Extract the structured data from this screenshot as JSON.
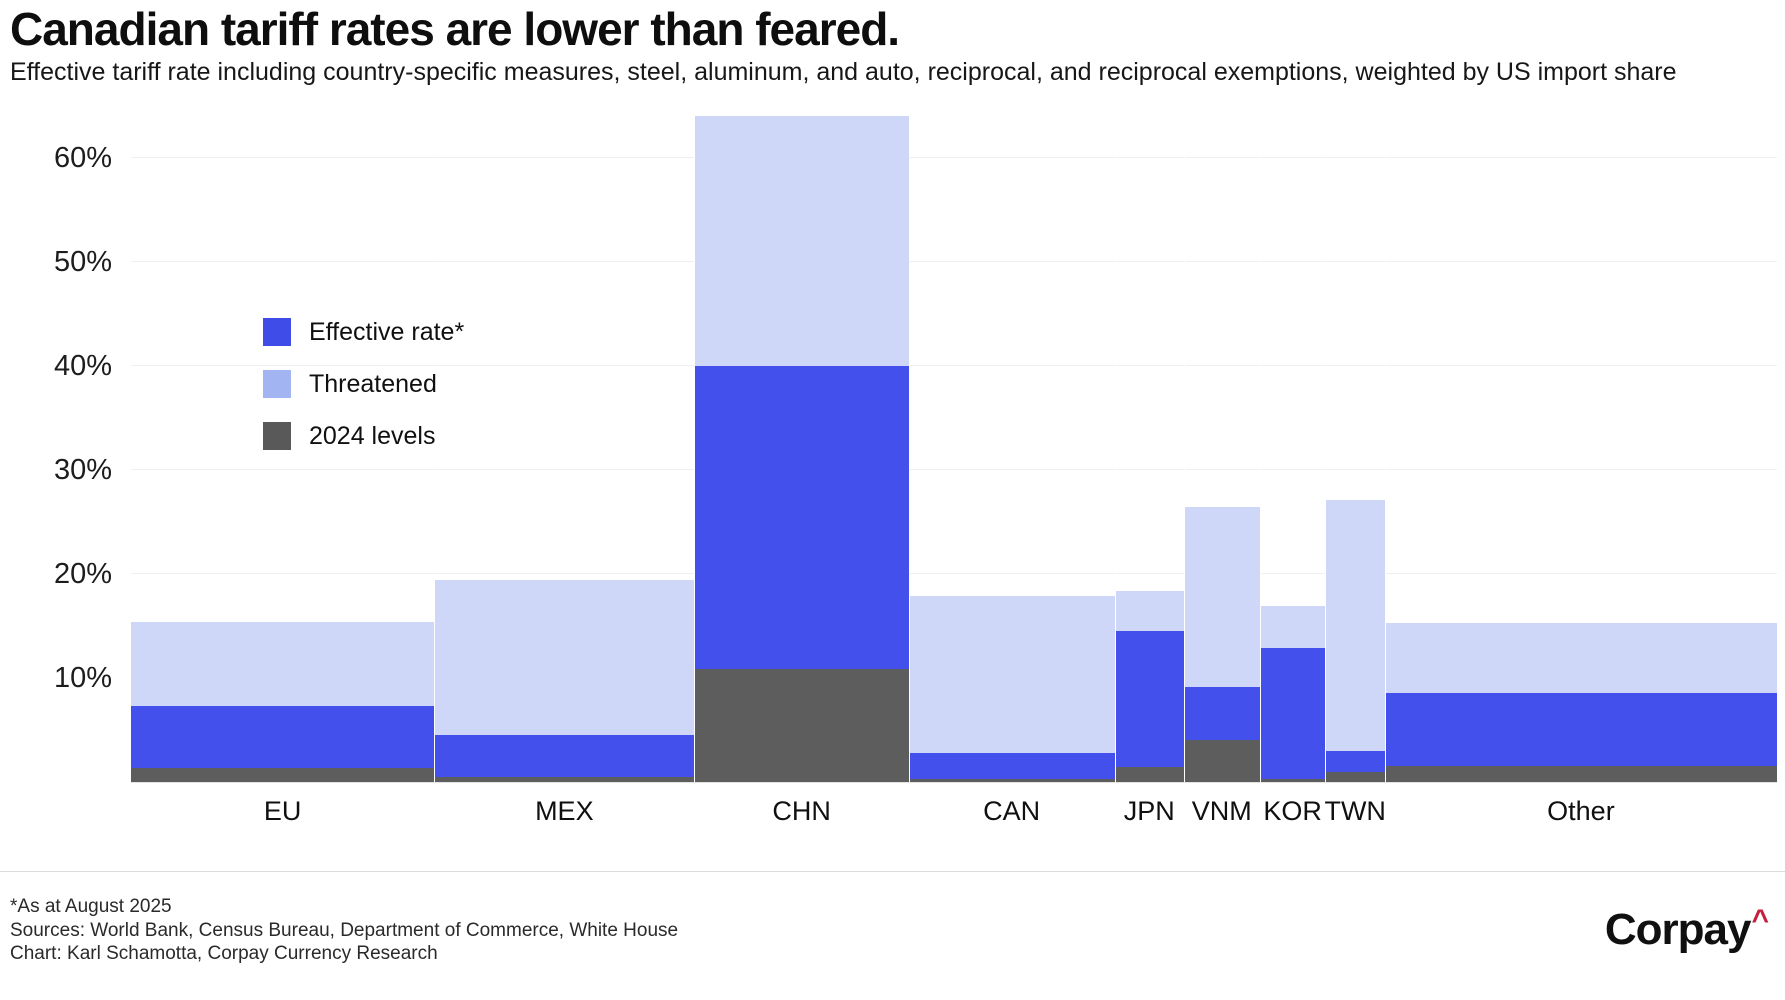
{
  "header": {
    "title": "Canadian tariff rates are lower than feared.",
    "subtitle": "Effective tariff rate including country-specific measures, steel, aluminum, and auto, reciprocal, and reciprocal exemptions, weighted by US import share"
  },
  "legend": [
    {
      "label": "Effective rate*",
      "color": "#3f4ce8"
    },
    {
      "label": "Threatened",
      "color": "#a2b4f2"
    },
    {
      "label": "2024 levels",
      "color": "#595959"
    }
  ],
  "footer": {
    "note": "*As at August 2025",
    "sources": "Sources: World Bank, Census Bureau, Department of Commerce, White House",
    "credit": "Chart: Karl Schamotta, Corpay Currency Research",
    "logo_text": "Corpay",
    "logo_caret": "^",
    "logo_caret_color": "#c41f3e"
  },
  "chart_data": {
    "type": "bar",
    "subtype": "marimekko-stacked",
    "title": "Canadian tariff rates are lower than feared.",
    "unit": "%",
    "grid": true,
    "legend_position": "upper-left-inside",
    "ylim": [
      0,
      65
    ],
    "yticks": [
      10,
      20,
      30,
      40,
      50,
      60
    ],
    "ytick_suffix": "%",
    "categories": [
      "EU",
      "MEX",
      "CHN",
      "CAN",
      "JPN",
      "VNM",
      "KOR",
      "TWN",
      "Other"
    ],
    "bar_width_us_import_share_pct": [
      18.4,
      15.8,
      13.0,
      12.5,
      4.2,
      4.6,
      4.0,
      3.6,
      23.8
    ],
    "series": [
      {
        "name": "2024 levels",
        "role": "cumulative_top",
        "color": "#5d5d5d",
        "values": [
          1.3,
          0.5,
          10.9,
          0.3,
          1.4,
          4.0,
          0.3,
          1.0,
          1.5
        ]
      },
      {
        "name": "Effective rate*",
        "role": "cumulative_top",
        "color": "#4450ec",
        "values": [
          7.3,
          4.5,
          40.0,
          2.8,
          14.5,
          9.1,
          12.9,
          3.0,
          8.6
        ]
      },
      {
        "name": "Threatened",
        "role": "cumulative_top",
        "color": "#ced7f8",
        "values": [
          15.4,
          19.4,
          64.0,
          17.9,
          18.4,
          26.4,
          16.9,
          27.1,
          15.3
        ]
      }
    ],
    "note": "Series values are cumulative levels from 0%: 2024 level <= effective rate <= threatened rate. Bar widths proportional to US import share."
  }
}
